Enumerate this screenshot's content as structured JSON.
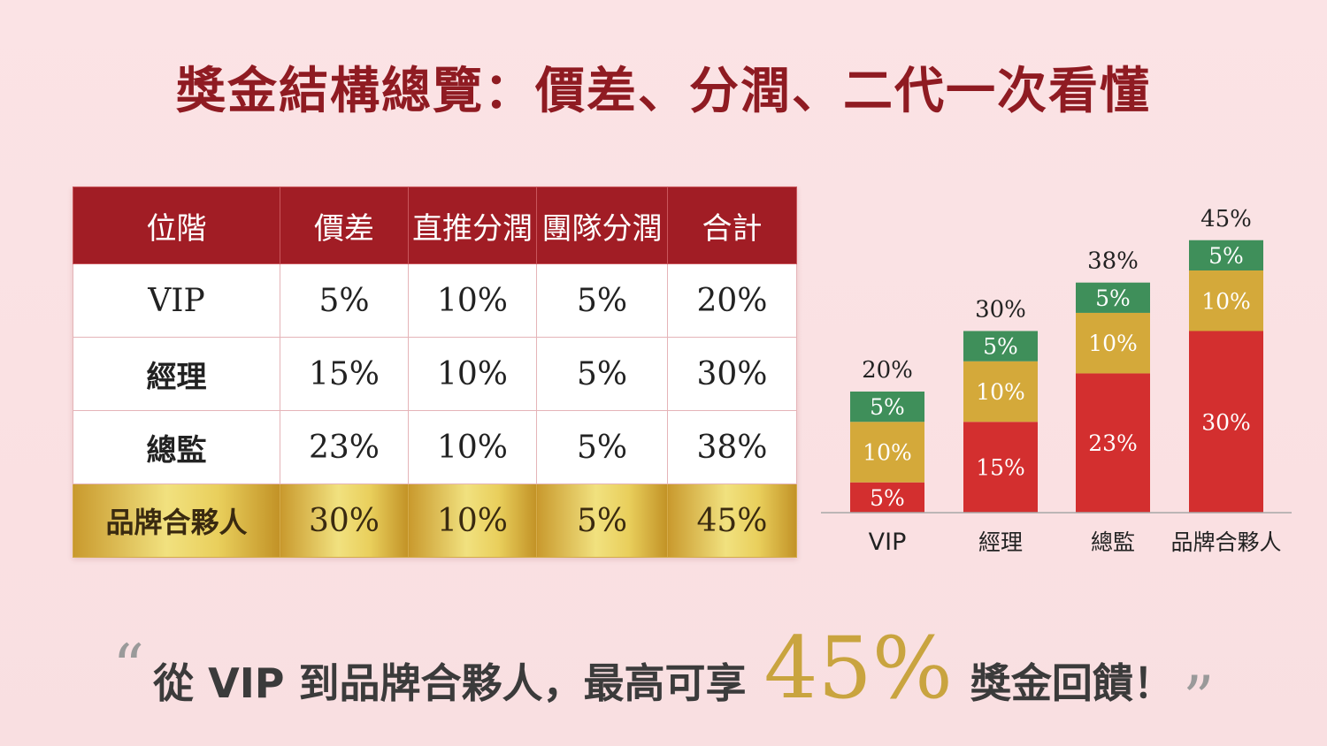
{
  "title": "獎金結構總覽：價差、分潤、二代一次看懂",
  "table": {
    "headers": [
      "位階",
      "價差",
      "直推分潤",
      "團隊分潤",
      "合計"
    ],
    "rows": [
      [
        "VIP",
        "5%",
        "10%",
        "5%",
        "20%"
      ],
      [
        "經理",
        "15%",
        "10%",
        "5%",
        "30%"
      ],
      [
        "總監",
        "23%",
        "10%",
        "5%",
        "38%"
      ],
      [
        "品牌合夥人",
        "30%",
        "10%",
        "5%",
        "45%"
      ]
    ]
  },
  "chart_data": {
    "type": "bar",
    "stacked": true,
    "categories": [
      "VIP",
      "經理",
      "總監",
      "品牌合夥人"
    ],
    "series": [
      {
        "values": [
          5,
          15,
          23,
          30
        ],
        "color": "#d32f2f"
      },
      {
        "values": [
          10,
          10,
          10,
          10
        ],
        "color": "#d4a93a"
      },
      {
        "values": [
          5,
          5,
          5,
          5
        ],
        "color": "#3f8f5a"
      }
    ],
    "totals": [
      20,
      30,
      38,
      45
    ],
    "value_suffix": "%",
    "ylim": [
      0,
      45
    ]
  },
  "quote": {
    "open_mark": "“",
    "before": "從 VIP 到品牌合夥人，最高可享",
    "highlight": "45%",
    "after": "獎金回饋！",
    "close_mark": "”"
  }
}
